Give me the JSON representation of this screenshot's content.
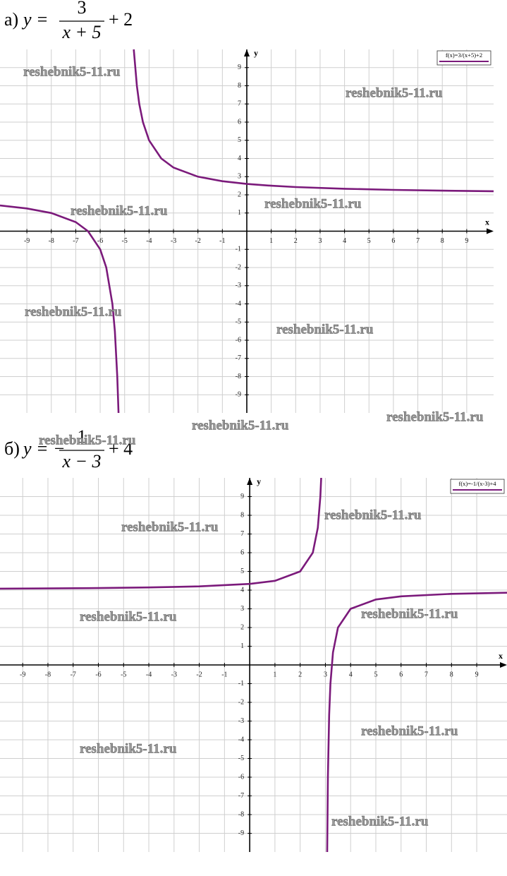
{
  "chart_data": [
    {
      "type": "line",
      "label": "а)",
      "formula": {
        "lhs": "y =",
        "numerator": "3",
        "denominator": "x + 5",
        "rest": "+ 2"
      },
      "x_label": "x",
      "y_label": "y",
      "xlim": [
        -10.1,
        10.1
      ],
      "ylim": [
        -10,
        10
      ],
      "xticks": [
        -9,
        -8,
        -7,
        -6,
        -5,
        -4,
        -3,
        -2,
        -1,
        1,
        2,
        3,
        4,
        5,
        6,
        7,
        8,
        9
      ],
      "yticks": [
        -9,
        -8,
        -7,
        -6,
        -5,
        -4,
        -3,
        -2,
        -1,
        1,
        2,
        3,
        4,
        5,
        6,
        7,
        8,
        9
      ],
      "grid": true,
      "legend": "upper right",
      "series": [
        {
          "name": "f(x)=3/(x+5)+2",
          "color": "#7b1a7b",
          "x": [
            -10.1,
            -9,
            -8,
            -7,
            -6.5,
            -6,
            -5.75,
            -5.5,
            -5.4,
            -5.3,
            -5.25,
            -5,
            -4.625,
            -4.5,
            -4.4,
            -4.25,
            -4,
            -3.5,
            -3,
            -2,
            -1,
            0,
            1,
            2,
            4,
            6,
            8,
            10.1
          ],
          "values": [
            1.412,
            1.25,
            1,
            0.5,
            0,
            -1,
            -2,
            -4,
            -5.5,
            -8,
            -10,
            null,
            10,
            8,
            7,
            6,
            5,
            4,
            3.5,
            3,
            2.75,
            2.6,
            2.5,
            2.4286,
            2.3333,
            2.2727,
            2.2308,
            2.1987
          ]
        }
      ]
    },
    {
      "type": "line",
      "label": "б)",
      "formula": {
        "lhs": "y = −",
        "numerator": "1",
        "denominator": "x − 3",
        "rest": "+ 4"
      },
      "x_label": "x",
      "y_label": "y",
      "xlim": [
        -9.9,
        10.2
      ],
      "ylim": [
        -10,
        10
      ],
      "xticks": [
        -9,
        -8,
        -7,
        -6,
        -5,
        -4,
        -3,
        -2,
        -1,
        1,
        2,
        3,
        4,
        5,
        6,
        7,
        8,
        9
      ],
      "yticks": [
        -9,
        -8,
        -7,
        -6,
        -5,
        -4,
        -3,
        -2,
        -1,
        1,
        2,
        3,
        4,
        5,
        6,
        7,
        8,
        9
      ],
      "grid": true,
      "legend": "upper right",
      "series": [
        {
          "name": "f(x)=-1/(x-3)+4",
          "color": "#7b1a7b",
          "x": [
            -9.9,
            -8,
            -6,
            -4,
            -2,
            0,
            1,
            2,
            2.5,
            2.7,
            2.8,
            2.8333,
            3,
            3.0714,
            3.1,
            3.15,
            3.2,
            3.3,
            3.5,
            4,
            5,
            6,
            8,
            10.2
          ],
          "values": [
            4.0775,
            4.0909,
            4.1111,
            4.1429,
            4.2,
            4.3333,
            4.5,
            5,
            6,
            7.3333,
            9,
            10,
            null,
            -10,
            -6,
            -2.6667,
            -1,
            0.6667,
            2,
            3,
            3.5,
            3.6667,
            3.8,
            3.8611
          ]
        }
      ]
    }
  ],
  "watermarks": [
    "reshebnik5-11.ru",
    "reshebnik5-11.ru",
    "reshebnik5-11.ru",
    "reshebnik5-11.ru",
    "reshebnik5-11.ru",
    "reshebnik5-11.ru",
    "reshebnik5-11.ru",
    "reshebnik5-11.ru",
    "reshebnik5-11.ru",
    "reshebnik5-11.ru",
    "reshebnik5-11.ru",
    "reshebnik5-11.ru",
    "reshebnik5-11.ru",
    "reshebnik5-11.ru",
    "reshebnik5-11.ru",
    "reshebnik5-11.ru"
  ]
}
